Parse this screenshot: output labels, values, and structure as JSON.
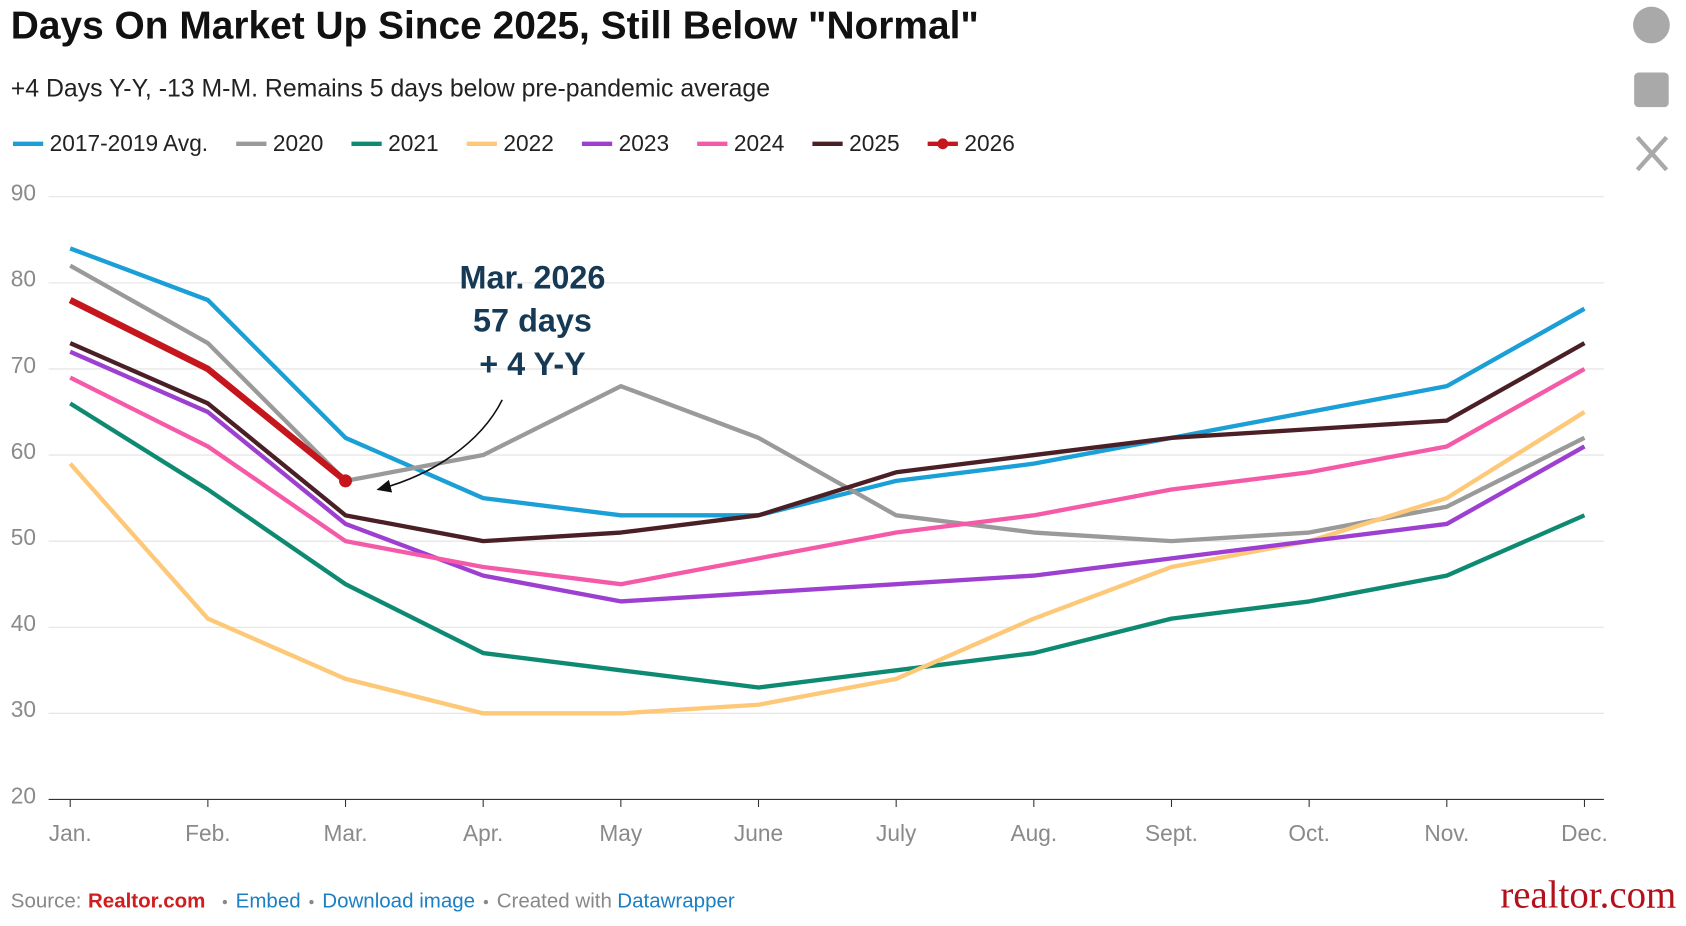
{
  "chart_data": {
    "type": "line",
    "title": "Days On Market Up Since 2025, Still Below \"Normal\"",
    "subtitle": "+4 Days Y-Y, -13 M-M. Remains 5 days below pre-pandemic average",
    "categories": [
      "Jan.",
      "Feb.",
      "Mar.",
      "Apr.",
      "May",
      "June",
      "July",
      "Aug.",
      "Sept.",
      "Oct.",
      "Nov.",
      "Dec."
    ],
    "series": [
      {
        "name": "2017-2019 Avg.",
        "color": "#1a9fd6",
        "values": [
          84,
          78,
          62,
          55,
          53,
          53,
          57,
          59,
          62,
          65,
          68,
          77
        ]
      },
      {
        "name": "2020",
        "color": "#9a9a9a",
        "values": [
          82,
          73,
          57,
          60,
          68,
          62,
          53,
          51,
          50,
          51,
          54,
          62
        ]
      },
      {
        "name": "2021",
        "color": "#0e8a72",
        "values": [
          66,
          56,
          45,
          37,
          35,
          33,
          35,
          37,
          41,
          43,
          46,
          53
        ]
      },
      {
        "name": "2022",
        "color": "#fdc878",
        "values": [
          59,
          41,
          34,
          30,
          30,
          31,
          34,
          41,
          47,
          50,
          55,
          65
        ]
      },
      {
        "name": "2023",
        "color": "#9d3fd1",
        "values": [
          72,
          65,
          52,
          46,
          43,
          44,
          45,
          46,
          48,
          50,
          52,
          61
        ]
      },
      {
        "name": "2024",
        "color": "#f55aa8",
        "values": [
          69,
          61,
          50,
          47,
          45,
          48,
          51,
          53,
          56,
          58,
          61,
          70
        ]
      },
      {
        "name": "2025",
        "color": "#4a1f26",
        "values": [
          73,
          66,
          53,
          50,
          51,
          53,
          58,
          60,
          62,
          63,
          64,
          73
        ]
      },
      {
        "name": "2026",
        "color": "#c4161c",
        "values": [
          78,
          70,
          57,
          null,
          null,
          null,
          null,
          null,
          null,
          null,
          null,
          null
        ]
      }
    ],
    "ylim": [
      20,
      90
    ],
    "yticks": [
      20,
      30,
      40,
      50,
      60,
      70,
      80,
      90
    ],
    "grid": true,
    "annotation": [
      "Mar. 2026",
      "57 days",
      "+ 4 Y-Y"
    ],
    "footer": {
      "source_label": "Source:",
      "source": "Realtor.com",
      "embed": "Embed",
      "download": "Download image",
      "created_with": "Created with",
      "tool": "Datawrapper"
    },
    "logo": "realtor.com"
  }
}
